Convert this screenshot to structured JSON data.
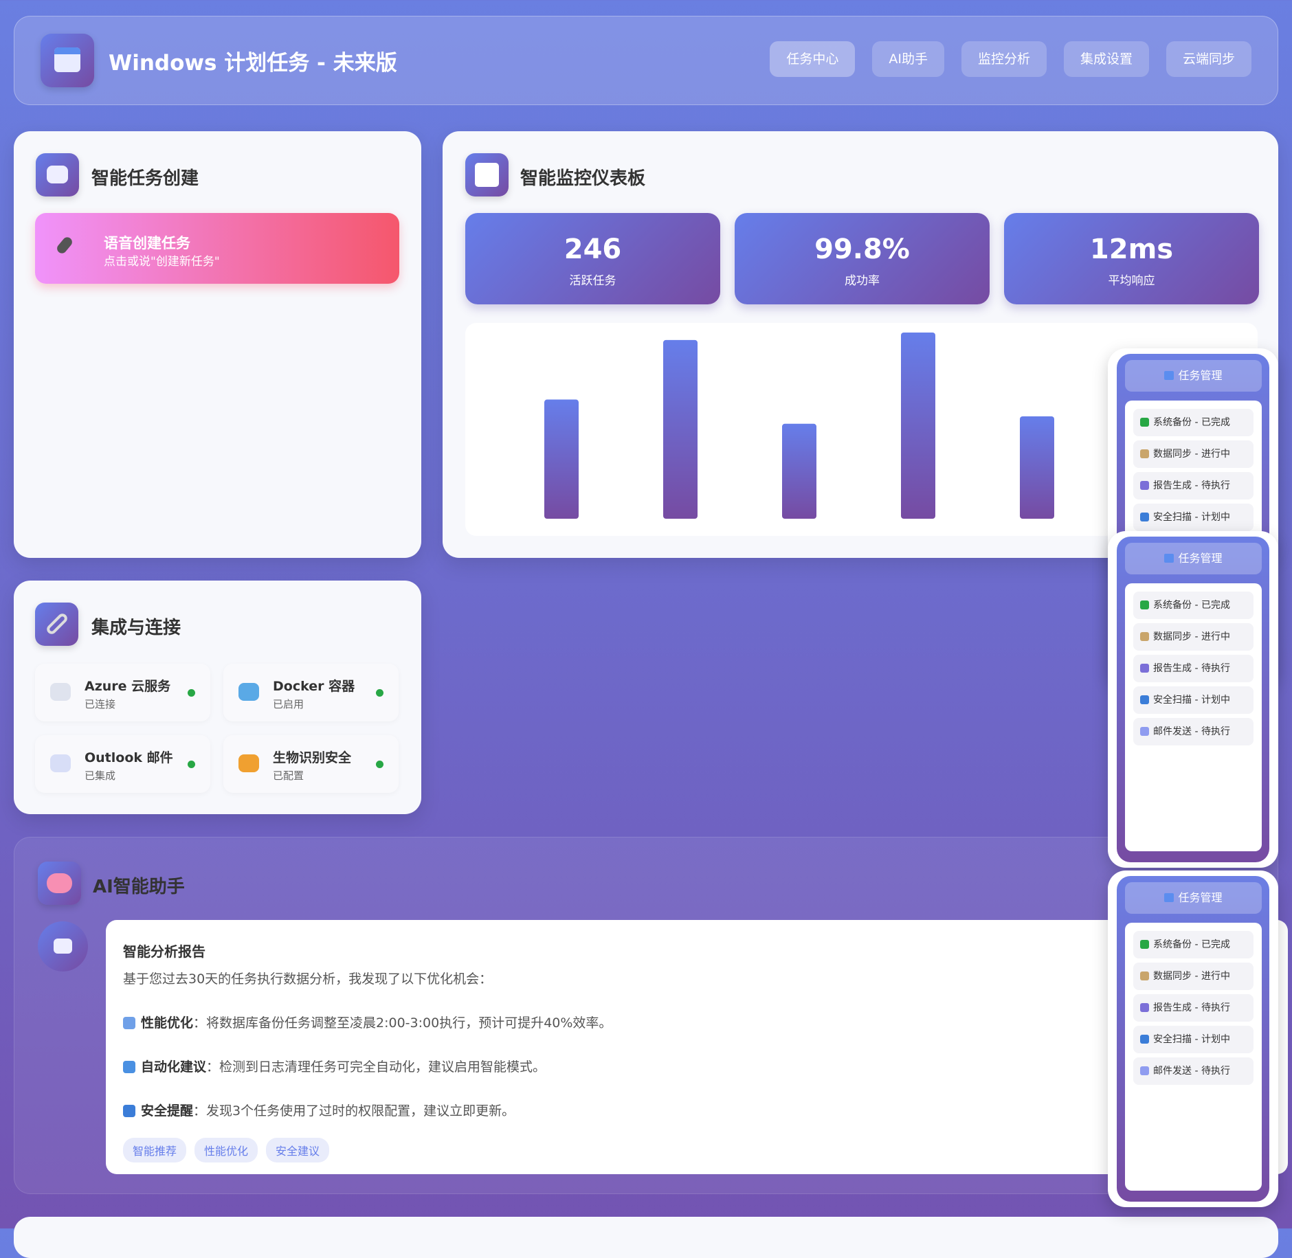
{
  "header": {
    "title": "Windows 计划任务 - 未来版",
    "nav": [
      "任务中心",
      "AI助手",
      "监控分析",
      "集成设置",
      "云端同步"
    ]
  },
  "task_creation": {
    "title": "智能任务创建",
    "voice_title": "语音创建任务",
    "voice_hint": "点击或说\"创建新任务\""
  },
  "dashboard": {
    "title": "智能监控仪表板",
    "stats": [
      {
        "value": "246",
        "label": "活跃任务"
      },
      {
        "value": "99.8%",
        "label": "成功率"
      },
      {
        "value": "12ms",
        "label": "平均响应"
      }
    ]
  },
  "chart_data": {
    "type": "bar",
    "categories": [
      null,
      null,
      null,
      null,
      null
    ],
    "values": [
      64,
      96,
      51,
      100,
      55
    ],
    "ylim": [
      0,
      100
    ],
    "color_from": "#667eea",
    "color_to": "#764ba2"
  },
  "integrations": {
    "title": "集成与连接",
    "items": [
      {
        "name": "Azure 云服务",
        "status": "已连接"
      },
      {
        "name": "Docker 容器",
        "status": "已启用"
      },
      {
        "name": "Outlook 邮件",
        "status": "已集成"
      },
      {
        "name": "生物识别安全",
        "status": "已配置"
      }
    ]
  },
  "assistant": {
    "title": "AI智能助手",
    "report_title": "智能分析报告",
    "intro": "基于您过去30天的任务执行数据分析，我发现了以下优化机会：",
    "points": [
      {
        "label": "性能优化",
        "text": "：将数据库备份任务调整至凌晨2:00-3:00执行，预计可提升40%效率。"
      },
      {
        "label": "自动化建议",
        "text": "：检测到日志清理任务可完全自动化，建议启用智能模式。"
      },
      {
        "label": "安全提醒",
        "text": "：发现3个任务使用了过时的权限配置，建议立即更新。"
      }
    ],
    "tags": [
      "智能推荐",
      "性能优化",
      "安全建议"
    ]
  },
  "widgets": [
    {
      "title": "任务管理",
      "items": [
        "系统备份 - 已完成",
        "数据同步 - 进行中",
        "报告生成 - 待执行",
        "安全扫描 - 计划中"
      ]
    },
    {
      "title": "任务管理",
      "items": [
        "系统备份 - 已完成",
        "数据同步 - 进行中",
        "报告生成 - 待执行",
        "安全扫描 - 计划中",
        "邮件发送 - 待执行"
      ]
    },
    {
      "title": "任务管理",
      "items": [
        "系统备份 - 已完成",
        "数据同步 - 进行中",
        "报告生成 - 待执行",
        "安全扫描 - 计划中",
        "邮件发送 - 待执行"
      ]
    }
  ]
}
